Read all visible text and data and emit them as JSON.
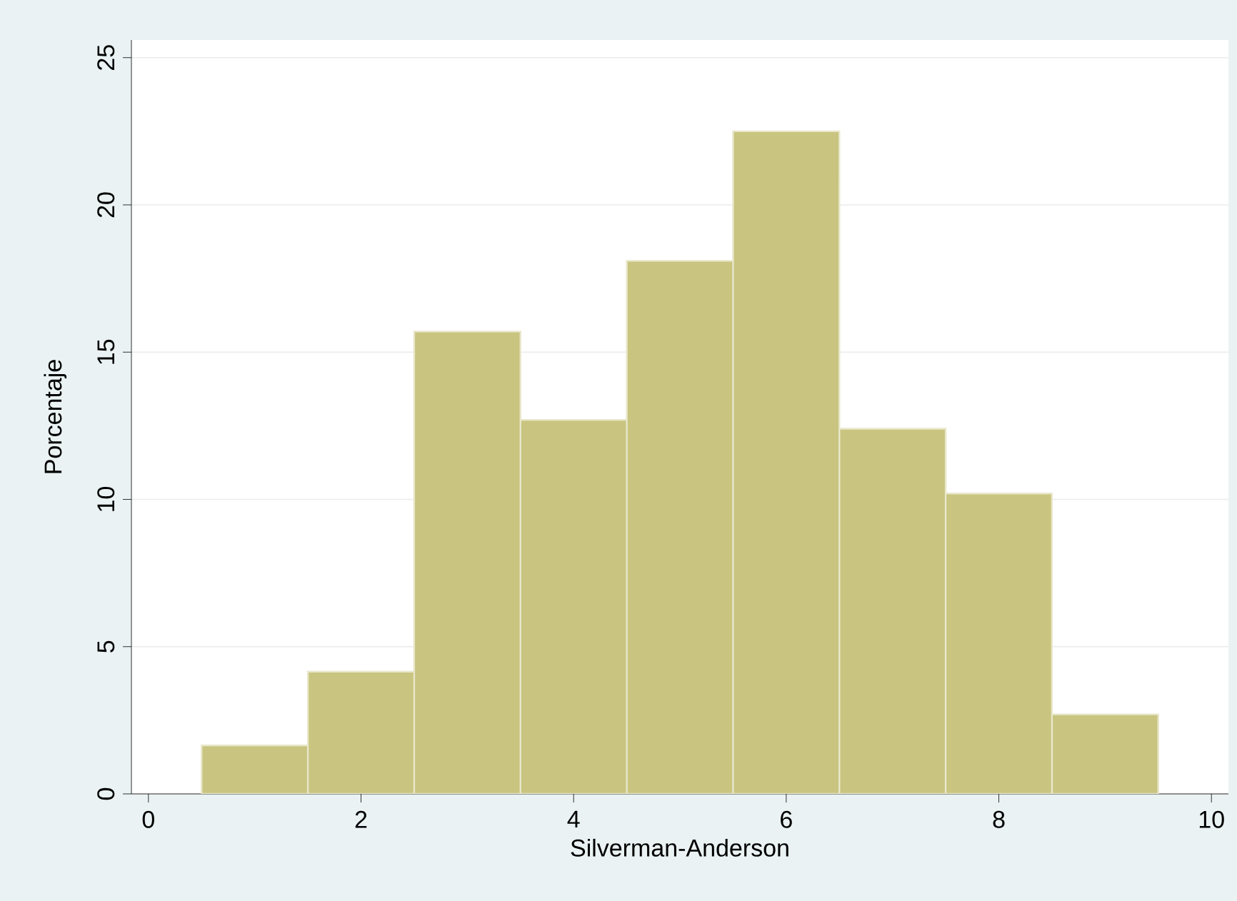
{
  "chart_data": {
    "type": "histogram",
    "xlabel": "Silverman-Anderson",
    "ylabel": "Porcentaje",
    "bins": [
      0.5,
      1.5,
      2.5,
      3.5,
      4.5,
      5.5,
      6.5,
      7.5,
      8.5,
      9.5
    ],
    "values": [
      1.65,
      4.15,
      15.7,
      12.7,
      18.1,
      22.5,
      12.4,
      10.2,
      2.7
    ],
    "color": "#c9c47f",
    "xlim": [
      -0.16,
      10.16
    ],
    "ylim": [
      0,
      25.6
    ],
    "xticks": [
      0,
      2,
      4,
      6,
      8,
      10
    ],
    "yticks": [
      0,
      5,
      10,
      15,
      20,
      25
    ],
    "grid": "y"
  }
}
